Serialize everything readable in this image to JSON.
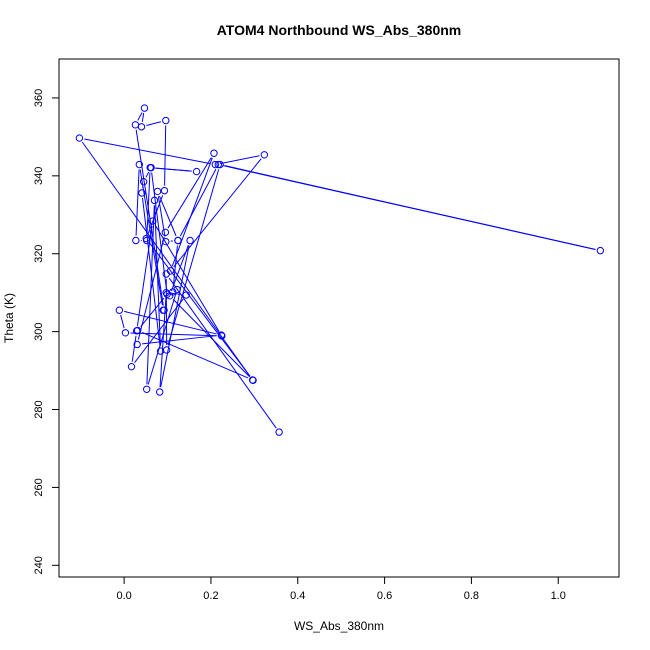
{
  "chart_data": {
    "type": "line",
    "title": "ATOM4 Northbound WS_Abs_380nm",
    "xlabel": "WS_Abs_380nm",
    "ylabel": "Theta (K)",
    "xlim": [
      -0.15,
      1.14
    ],
    "ylim": [
      237,
      370
    ],
    "x_ticks": [
      0.0,
      0.2,
      0.4,
      0.6,
      0.8,
      1.0
    ],
    "x_tick_labels": [
      "0.0",
      "0.2",
      "0.4",
      "0.6",
      "0.8",
      "1.0"
    ],
    "y_ticks": [
      240,
      260,
      280,
      300,
      320,
      340,
      360
    ],
    "y_tick_labels": [
      "240",
      "260",
      "280",
      "300",
      "320",
      "340",
      "360"
    ],
    "grid": false,
    "legend": "none",
    "series_color": "#0000ff",
    "markers": "open-circle",
    "series": [
      {
        "points": [
          [
            0.357,
            274.2
          ],
          [
            0.097,
            314.8
          ],
          [
            0.098,
            295.3
          ],
          [
            0.221,
            342.9
          ],
          [
            1.097,
            320.8
          ],
          [
            0.217,
            342.9
          ],
          [
            0.124,
            323.4
          ],
          [
            0.096,
            323.1
          ],
          [
            0.077,
            336.0
          ],
          [
            0.124,
            323.4
          ],
          [
            0.112,
            310.2
          ],
          [
            0.122,
            310.8
          ],
          [
            0.052,
            285.2
          ],
          [
            0.07,
            333.7
          ],
          [
            0.084,
            295.0
          ],
          [
            0.041,
            335.6
          ],
          [
            0.045,
            338.5
          ],
          [
            0.062,
            342.1
          ],
          [
            0.167,
            341.1
          ],
          [
            0.06,
            342.1
          ],
          [
            0.052,
            323.4
          ],
          [
            0.027,
            323.4
          ],
          [
            0.035,
            342.9
          ],
          [
            0.09,
            305.5
          ],
          [
            0.092,
            305.5
          ],
          [
            0.026,
            353.1
          ],
          [
            0.047,
            357.4
          ],
          [
            0.04,
            352.6
          ],
          [
            0.096,
            354.2
          ],
          [
            0.093,
            336.2
          ],
          [
            0.051,
            323.9
          ],
          [
            0.297,
            287.5
          ],
          [
            0.105,
            309.2
          ],
          [
            0.152,
            323.4
          ],
          [
            0.082,
            284.5
          ],
          [
            0.097,
            310.0
          ],
          [
            0.143,
            309.4
          ],
          [
            0.017,
            291.0
          ],
          [
            0.029,
            300.2
          ],
          [
            0.066,
            328.4
          ],
          [
            0.225,
            298.9
          ],
          [
            0.003,
            299.7
          ],
          [
            -0.011,
            305.5
          ],
          [
            0.224,
            299.1
          ],
          [
            0.03,
            296.7
          ],
          [
            0.095,
            325.5
          ],
          [
            0.207,
            345.8
          ],
          [
            0.107,
            315.6
          ],
          [
            0.323,
            345.4
          ],
          [
            0.21,
            342.9
          ],
          [
            -0.103,
            349.7
          ],
          [
            0.296,
            287.6
          ],
          [
            0.031,
            300.3
          ],
          [
            0.099,
            309.6
          ],
          [
            0.062,
            342.1
          ]
        ]
      }
    ]
  }
}
